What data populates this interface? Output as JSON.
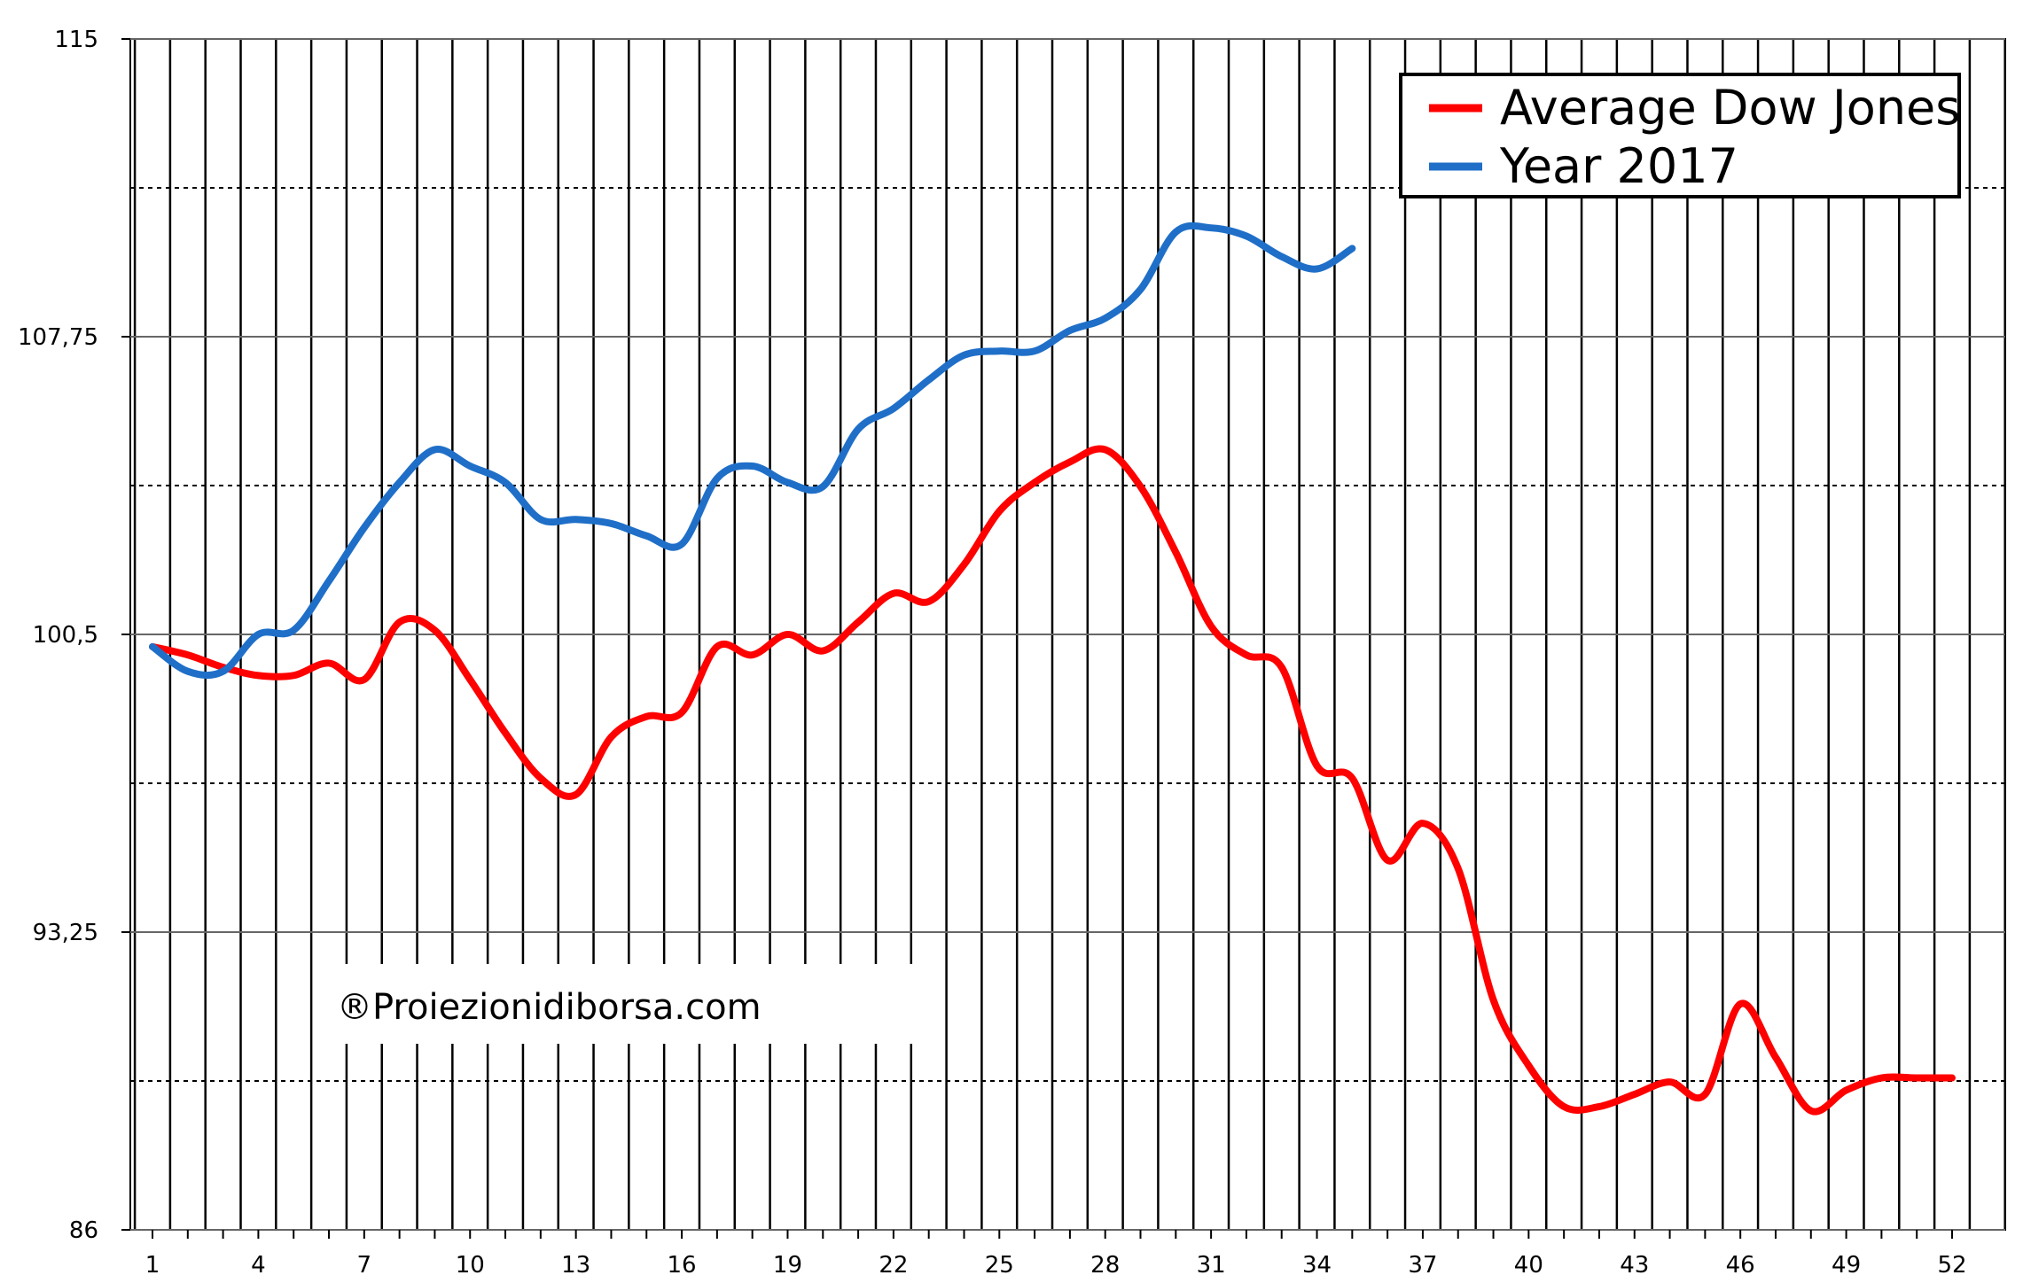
{
  "chart_data": {
    "type": "line",
    "title": "",
    "xlabel": "",
    "ylabel": "",
    "ylim": [
      86,
      115
    ],
    "xlim": [
      1,
      52
    ],
    "y_ticks": [
      "115",
      "107,75",
      "100,5",
      "93,25",
      "86"
    ],
    "x_ticks": [
      "1",
      "4",
      "7",
      "10",
      "13",
      "16",
      "19",
      "22",
      "25",
      "28",
      "31",
      "34",
      "37",
      "40",
      "43",
      "46",
      "49",
      "52"
    ],
    "grid": true,
    "legend": "top-right",
    "series": [
      {
        "name": "Average Dow Jones",
        "color": "#ff0000",
        "x": [
          1,
          2,
          3,
          4,
          5,
          6,
          7,
          8,
          9,
          10,
          11,
          12,
          13,
          14,
          15,
          16,
          17,
          18,
          19,
          20,
          21,
          22,
          23,
          24,
          25,
          26,
          27,
          28,
          29,
          30,
          31,
          32,
          33,
          34,
          35,
          36,
          37,
          38,
          39,
          40,
          41,
          42,
          43,
          44,
          45,
          46,
          47,
          48,
          49,
          50,
          51,
          52
        ],
        "values": [
          100.2,
          100.0,
          99.7,
          99.5,
          99.5,
          99.8,
          99.4,
          100.8,
          100.6,
          99.4,
          98.1,
          97.0,
          96.6,
          98.0,
          98.5,
          98.6,
          100.2,
          100.0,
          100.5,
          100.1,
          100.8,
          101.5,
          101.3,
          102.2,
          103.5,
          104.2,
          104.7,
          105.0,
          104.1,
          102.5,
          100.7,
          100.0,
          99.7,
          97.3,
          97.0,
          95.0,
          95.9,
          94.8,
          91.6,
          90.0,
          89.0,
          89.0,
          89.3,
          89.6,
          89.3,
          91.5,
          90.2,
          88.9,
          89.4,
          89.7,
          89.7,
          89.7
        ],
        "id": "red"
      },
      {
        "name": "Year 2017",
        "color": "#1f6fc8",
        "x": [
          1,
          2,
          3,
          4,
          5,
          6,
          7,
          8,
          9,
          10,
          11,
          12,
          13,
          14,
          15,
          16,
          17,
          18,
          19,
          20,
          21,
          22,
          23,
          24,
          25,
          26,
          27,
          28,
          29,
          30,
          31,
          32,
          33,
          34,
          35
        ],
        "values": [
          100.2,
          99.6,
          99.6,
          100.5,
          100.6,
          101.8,
          103.1,
          104.2,
          105.0,
          104.6,
          104.2,
          103.3,
          103.3,
          103.2,
          102.9,
          102.7,
          104.3,
          104.6,
          104.2,
          104.1,
          105.5,
          106.0,
          106.7,
          107.3,
          107.4,
          107.4,
          107.9,
          108.2,
          108.9,
          110.3,
          110.4,
          110.2,
          109.7,
          109.4,
          109.9
        ],
        "id": "blue"
      }
    ],
    "annotations": [
      "®Proiezionidiborsa.com"
    ]
  },
  "legend": {
    "items": [
      "Average Dow Jones",
      "Year 2017"
    ]
  },
  "watermark": "®Proiezionidiborsa.com"
}
